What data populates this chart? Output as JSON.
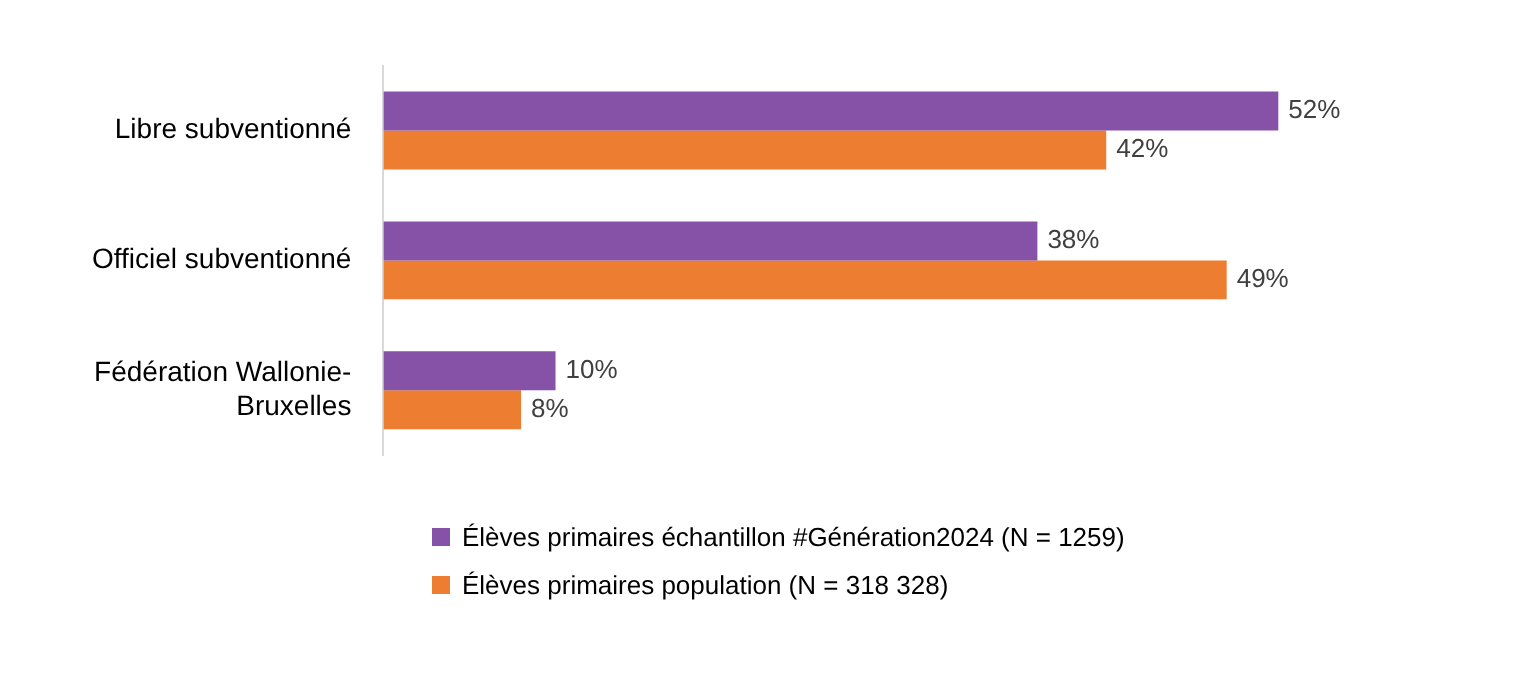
{
  "chart_data": {
    "type": "bar",
    "orientation": "horizontal",
    "categories": [
      "Libre subventionné",
      "Officiel subventionné",
      "Fédération Wallonie-Bruxelles"
    ],
    "series": [
      {
        "name": "Élèves primaires échantillon #Génération2024 (N = 1259)",
        "color": "#8552a8",
        "values": [
          52,
          38,
          10
        ],
        "value_labels": [
          "52%",
          "38%",
          "10%"
        ]
      },
      {
        "name": "Élèves primaires population (N = 318 328)",
        "color": "#ed7d31",
        "values": [
          42,
          49,
          8
        ],
        "value_labels": [
          "42%",
          "49%",
          "8%"
        ]
      }
    ],
    "legend": "bottom"
  }
}
